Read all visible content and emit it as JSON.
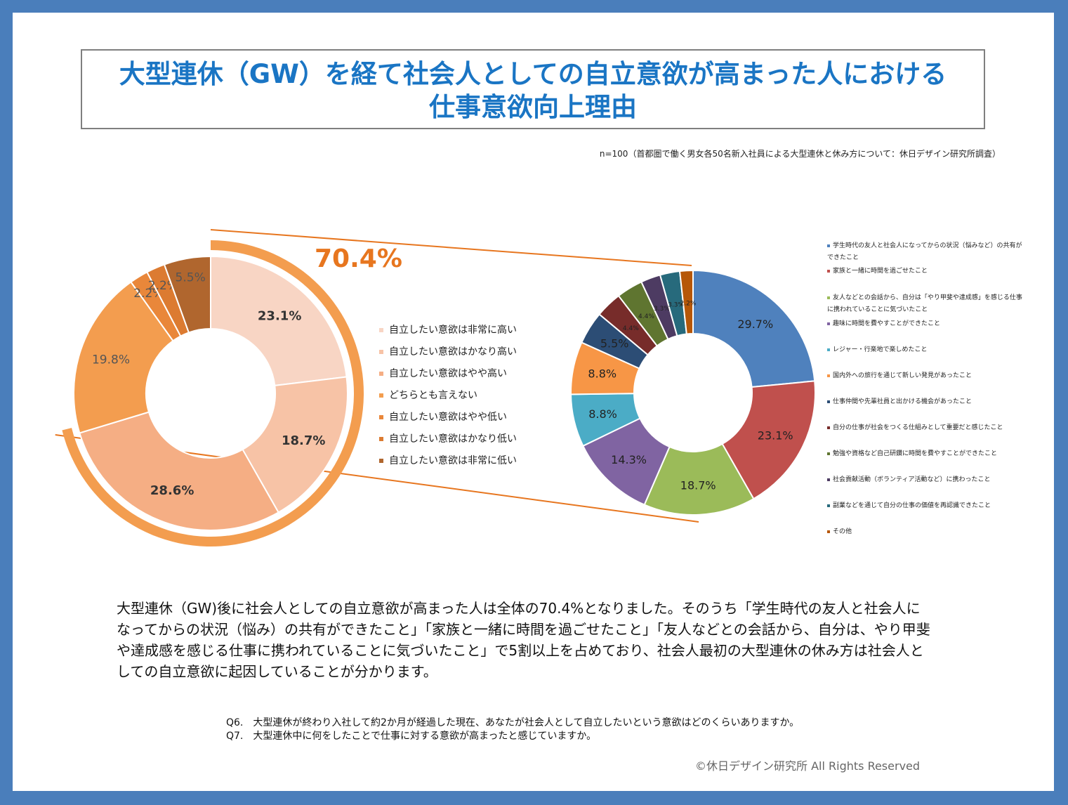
{
  "title_lines": [
    "大型連休（GW）を経て社会人としての自立意欲が高まった人における",
    "仕事意欲向上理由"
  ],
  "note": "n=100（首都圏で働く男女各50名新入社員による大型連休と休み方について：休日デザイン研究所調査）",
  "highlight_pct": "70.4%",
  "body_text": "大型連休（GW)後に社会人としての自立意欲が高まった人は全体の70.4%となりました。そのうち「学生時代の友人と社会人になってからの状況（悩み）の共有ができたこと」「家族と一緒に時間を過ごせたこと」「友人などとの会話から、自分は、やり甲斐や達成感を感じる仕事に携われていることに気づいたこと」で5割以上を占めており、社会人最初の大型連休の休み方は社会人としての自立意欲に起因していることが分かります。",
  "questions": [
    "Q6.　大型連休が終わり入社して約2か月が経過した現在、あなたが社会人として自立したいという意欲はどのくらいありますか。",
    "Q7.　大型連休中に何をしたことで仕事に対する意欲が高まったと感じていますか。"
  ],
  "copyright": "©休日デザイン研究所  All Rights Reserved",
  "chart_data": [
    {
      "type": "pie",
      "subtype": "doughnut",
      "labels": [
        "自立したい意欲は非常に高い",
        "自立したい意欲はかなり高い",
        "自立したい意欲はやや高い",
        "どちらとも言えない",
        "自立したい意欲はやや低い",
        "自立したい意欲はかなり低い",
        "自立したい意欲は非常に低い"
      ],
      "values": [
        23.1,
        18.7,
        28.6,
        19.8,
        2.2,
        2.2,
        5.5
      ],
      "value_labels": [
        "23.1%",
        "18.7%",
        "28.6%",
        "19.8%",
        "2.2%",
        "2.2%",
        "5.5%"
      ],
      "colors": [
        "#f8d5c4",
        "#f7c3a6",
        "#f5ae84",
        "#f39d4f",
        "#e9873a",
        "#dc7b31",
        "#b0662e"
      ],
      "legend_position": "right"
    },
    {
      "type": "pie",
      "subtype": "doughnut",
      "labels": [
        "学生時代の友人と社会人になってからの状況（悩みなど）の共有ができたこと",
        "家族と一緒に時間を過ごせたこと",
        "友人などとの会話から、自分は「やり甲斐や達成感」を感じる仕事に携われていることに気づいたこと",
        "趣味に時間を費やすことができたこと",
        "レジャー・行楽地で楽しめたこと",
        "国内外への旅行を通じて新しい発見があったこと",
        "仕事仲間や先輩社員と出かける機会があったこと",
        "自分の仕事が社会をつくる仕組みとして重要だと感じたこと",
        "勉強や資格など自己研鑽に時間を費やすことができたこと",
        "社会貢献活動（ボランティア活動など）に携わったこと",
        "副業などを通じて自分の仕事の価値を再認識できたこと",
        "その他"
      ],
      "values": [
        29.7,
        23.1,
        18.7,
        14.3,
        8.8,
        8.8,
        5.5,
        4.4,
        4.4,
        3.3,
        3.3,
        2.2
      ],
      "value_labels": [
        "29.7%",
        "23.1%",
        "18.7%",
        "14.3%",
        "8.8%",
        "8.8%",
        "5.5%",
        "4.4%",
        "4.4%",
        "3.3%",
        "3.3%",
        "2.2%"
      ],
      "colors": [
        "#4f81bd",
        "#c0504d",
        "#9bbb59",
        "#8064a2",
        "#4bacc6",
        "#f79646",
        "#2c4d75",
        "#772c2a",
        "#5f7530",
        "#4d3b62",
        "#276a7c",
        "#b65708"
      ],
      "legend_position": "right"
    }
  ]
}
